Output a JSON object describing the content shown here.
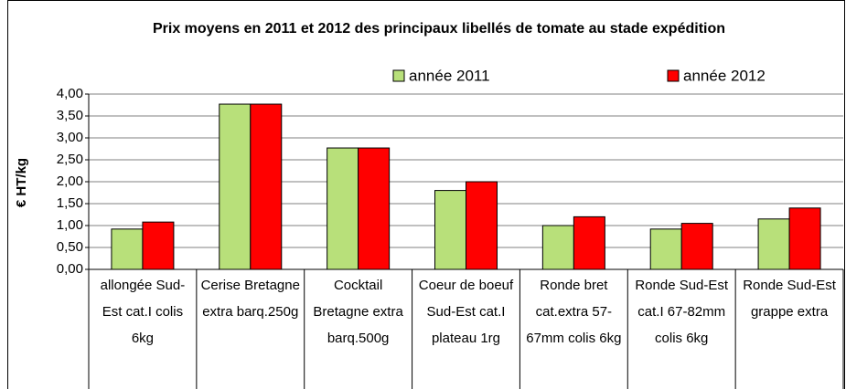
{
  "chart_data": {
    "type": "bar",
    "title": "Prix moyens en 2011 et 2012 des principaux libellés de tomate au stade expédition",
    "ylabel": "€ HT/kg",
    "categories": [
      "allongée Sud-Est cat.I colis 6kg",
      "Cerise Bretagne extra barq.250g",
      "Cocktail Bretagne extra barq.500g",
      "Coeur de boeuf Sud-Est cat.I plateau 1rg",
      "Ronde bret cat.extra 57-67mm colis 6kg",
      "Ronde Sud-Est cat.I 67-82mm colis 6kg",
      "Ronde Sud-Est grappe extra"
    ],
    "series": [
      {
        "name": "année 2011",
        "color": "#b8e07a",
        "values": [
          0.92,
          3.77,
          2.77,
          1.8,
          1.0,
          0.92,
          1.15
        ]
      },
      {
        "name": "année 2012",
        "color": "#ff0000",
        "values": [
          1.08,
          3.77,
          2.77,
          2.0,
          1.2,
          1.05,
          1.4
        ]
      }
    ],
    "ylim": [
      0,
      4
    ],
    "yticks": [
      {
        "value": 0,
        "label": "0,00"
      },
      {
        "value": 0.5,
        "label": "0,50"
      },
      {
        "value": 1,
        "label": "1,00"
      },
      {
        "value": 1.5,
        "label": "1,50"
      },
      {
        "value": 2,
        "label": "2,00"
      },
      {
        "value": 2.5,
        "label": "2,50"
      },
      {
        "value": 3,
        "label": "3,00"
      },
      {
        "value": 3.5,
        "label": "3,50"
      },
      {
        "value": 4,
        "label": "4,00"
      }
    ],
    "grid": true,
    "legend": "top-right"
  }
}
